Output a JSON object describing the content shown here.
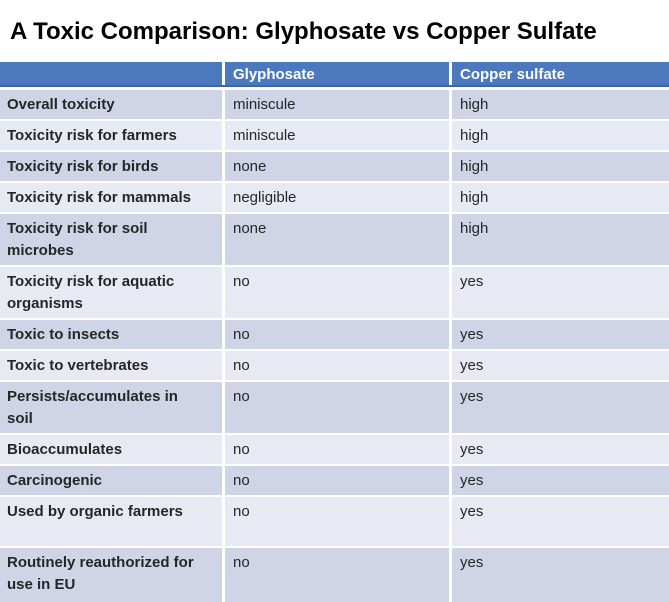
{
  "title": "A Toxic Comparison: Glyphosate vs Copper Sulfate",
  "table": {
    "columns": {
      "glyphosate": "Glyphosate",
      "copper_sulfate": "Copper sulfate"
    },
    "rows": [
      {
        "label": "Overall toxicity",
        "glyphosate": "miniscule",
        "copper_sulfate": "high"
      },
      {
        "label": "Toxicity risk for farmers",
        "glyphosate": "miniscule",
        "copper_sulfate": "high"
      },
      {
        "label": "Toxicity risk for birds",
        "glyphosate": "none",
        "copper_sulfate": "high"
      },
      {
        "label": "Toxicity risk for mammals",
        "glyphosate": "negligible",
        "copper_sulfate": "high"
      },
      {
        "label": "Toxicity risk for soil microbes",
        "glyphosate": "none",
        "copper_sulfate": "high"
      },
      {
        "label": "Toxicity risk for aquatic organisms",
        "glyphosate": "no",
        "copper_sulfate": "yes"
      },
      {
        "label": "Toxic to insects",
        "glyphosate": "no",
        "copper_sulfate": "yes"
      },
      {
        "label": "Toxic to vertebrates",
        "glyphosate": "no",
        "copper_sulfate": "yes"
      },
      {
        "label": "Persists/accumulates in soil",
        "glyphosate": "no",
        "copper_sulfate": "yes"
      },
      {
        "label": "Bioaccumulates",
        "glyphosate": "no",
        "copper_sulfate": "yes"
      },
      {
        "label": "Carcinogenic",
        "glyphosate": "no",
        "copper_sulfate": "yes"
      },
      {
        "label": "Used by organic farmers",
        "glyphosate": "no",
        "copper_sulfate": "yes"
      },
      {
        "label": "Routinely reauthorized for use in EU",
        "glyphosate": "no",
        "copper_sulfate": "yes"
      }
    ]
  },
  "colors": {
    "header_bg": "#4C78BE",
    "header_edge": "#3C66A6",
    "header_text": "#FFFFFF",
    "band_dark": "#CFD5E7",
    "band_light": "#E7EAF3",
    "text": "#262626",
    "title_text": "#000000",
    "background": "#FFFFFF"
  }
}
